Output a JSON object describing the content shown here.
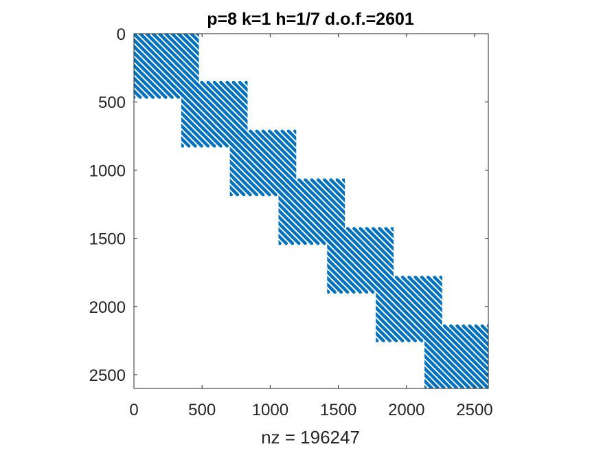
{
  "chart_data": {
    "type": "sparsity",
    "title": "p=8 k=1 h=1/7 d.o.f.=2601",
    "xlabel": "nz = 196247",
    "ylabel": "",
    "xlim": [
      0,
      2601
    ],
    "ylim": [
      0,
      2601
    ],
    "y_reversed": true,
    "xticks": [
      "0",
      "500",
      "1000",
      "1500",
      "2000",
      "2500"
    ],
    "yticks": [
      "0",
      "500",
      "1000",
      "1500",
      "2000",
      "2500"
    ],
    "xtick_values": [
      0,
      500,
      1000,
      1500,
      2000,
      2500
    ],
    "ytick_values": [
      0,
      500,
      1000,
      1500,
      2000,
      2500
    ],
    "n": 2601,
    "nnz": 196247,
    "num_blocks": 7,
    "blocks": [
      {
        "start": 0,
        "end": 467
      },
      {
        "start": 357,
        "end": 824
      },
      {
        "start": 714,
        "end": 1181
      },
      {
        "start": 1071,
        "end": 1538
      },
      {
        "start": 1428,
        "end": 1895
      },
      {
        "start": 1785,
        "end": 2252
      },
      {
        "start": 2142,
        "end": 2601
      }
    ],
    "diagonal_stripes_per_block": 10,
    "marker_color": "#0072BD",
    "grid": false,
    "box": true
  }
}
